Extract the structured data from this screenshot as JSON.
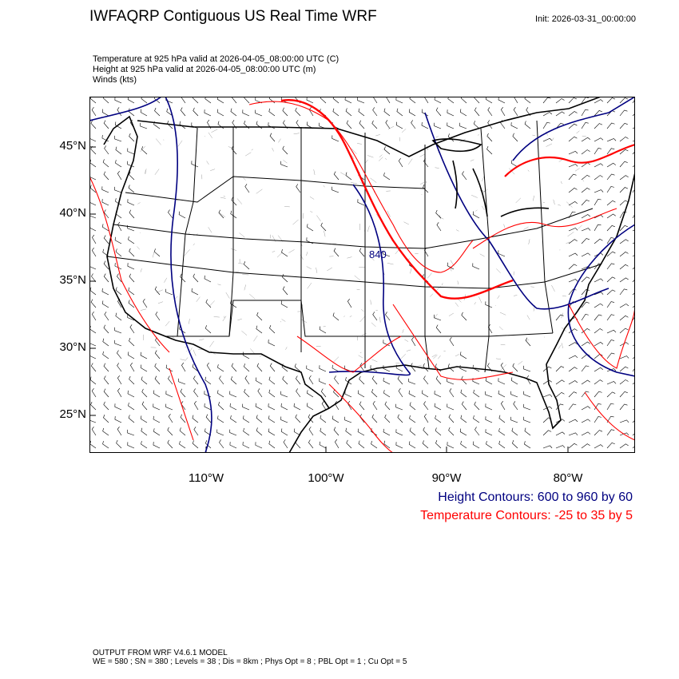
{
  "header": {
    "title": "IWFAQRP Contiguous US Real Time WRF",
    "init": "Init: 2026-03-31_00:00:00"
  },
  "subtitles": {
    "temperature": "Temperature at 925 hPa valid at 2026-04-05_08:00:00 UTC   (C)",
    "height": "Height at 925 hPa valid at 2026-04-05_08:00:00 UTC   (m)",
    "winds": "Winds   (kts)"
  },
  "map": {
    "lat_labels": [
      "45°N",
      "40°N",
      "35°N",
      "30°N",
      "25°N"
    ],
    "lon_labels": [
      "110°W",
      "100°W",
      "90°W",
      "80°W"
    ],
    "contour_label": "840",
    "colors": {
      "height": "#000080",
      "temperature": "#ff0000",
      "boundaries": "#000000"
    }
  },
  "legend": {
    "height": "Height Contours: 600 to 960 by 60",
    "temperature": "Temperature Contours: -25 to 35 by 5"
  },
  "footer": {
    "line1": "OUTPUT FROM WRF V4.6.1 MODEL",
    "line2": "WE = 580 ; SN = 380 ; Levels = 38 ; Dis = 8km ; Phys Opt = 8 ; PBL Opt = 1 ; Cu Opt = 5"
  }
}
